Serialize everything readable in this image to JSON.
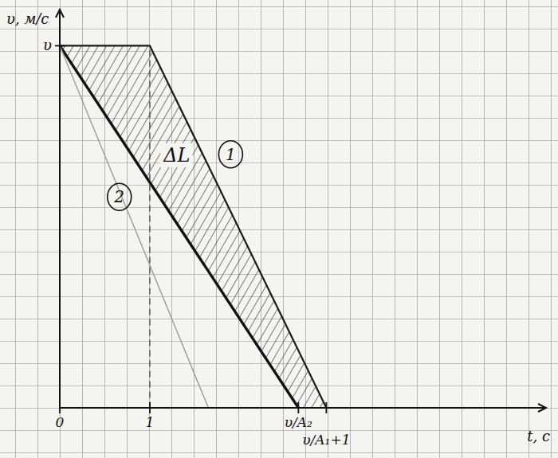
{
  "chart_data": {
    "type": "line",
    "x_label": "t, с",
    "y_label": "υ, м/с",
    "xlim": [
      0,
      5.4
    ],
    "ylim": [
      0,
      1.1
    ],
    "xticks": [
      0,
      1,
      {
        "value": 2.65,
        "label": "υ/A₂"
      },
      {
        "value": 2.96,
        "label": "υ/A₁+1"
      }
    ],
    "yticks": [
      {
        "value": 1,
        "label": "υ"
      }
    ],
    "series": [
      {
        "name": "1",
        "color": "#1a1a1a",
        "x": [
          0,
          1,
          2.96
        ],
        "values": [
          1,
          1,
          0
        ],
        "line_style": "solid"
      },
      {
        "name": "2",
        "color": "#111111",
        "x": [
          0,
          2.65
        ],
        "values": [
          1,
          0
        ],
        "line_style": "solid"
      },
      {
        "color": "#9a9a9a",
        "x": [
          0,
          1.65
        ],
        "values": [
          1,
          0
        ],
        "line_style": "solid"
      },
      {
        "color": "#555555",
        "x": [
          1,
          1
        ],
        "values": [
          0,
          1
        ],
        "line_style": "dashed"
      }
    ],
    "annotations": [
      {
        "text": "ΔL",
        "x": 1.3,
        "y": 0.68
      }
    ]
  }
}
